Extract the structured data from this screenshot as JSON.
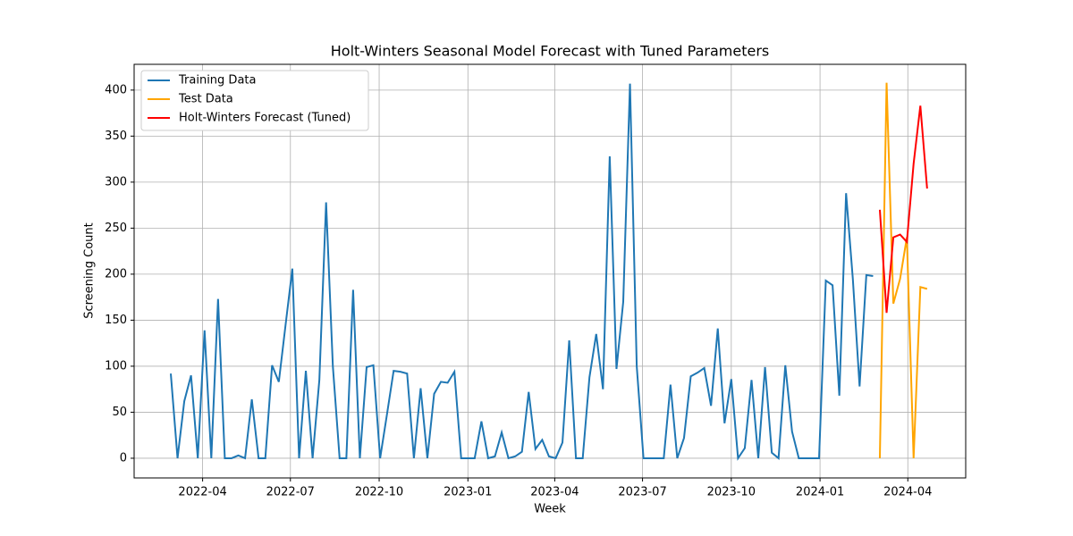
{
  "chart_data": {
    "type": "line",
    "title": "Holt-Winters Seasonal Model Forecast with Tuned Parameters",
    "xlabel": "Week",
    "ylabel": "Screening Count",
    "series": [
      {
        "name": "Training Data",
        "color": "#1f77b4",
        "x": [
          "2022-02-27",
          "2022-03-06",
          "2022-03-13",
          "2022-03-20",
          "2022-03-27",
          "2022-04-03",
          "2022-04-10",
          "2022-04-17",
          "2022-04-24",
          "2022-05-01",
          "2022-05-08",
          "2022-05-15",
          "2022-05-22",
          "2022-05-29",
          "2022-06-05",
          "2022-06-12",
          "2022-06-19",
          "2022-06-26",
          "2022-07-03",
          "2022-07-10",
          "2022-07-17",
          "2022-07-24",
          "2022-07-31",
          "2022-08-07",
          "2022-08-14",
          "2022-08-21",
          "2022-08-28",
          "2022-09-04",
          "2022-09-11",
          "2022-09-18",
          "2022-09-25",
          "2022-10-02",
          "2022-10-09",
          "2022-10-16",
          "2022-10-23",
          "2022-10-30",
          "2022-11-06",
          "2022-11-13",
          "2022-11-20",
          "2022-11-27",
          "2022-12-04",
          "2022-12-11",
          "2022-12-18",
          "2022-12-25",
          "2023-01-01",
          "2023-01-08",
          "2023-01-15",
          "2023-01-22",
          "2023-01-29",
          "2023-02-05",
          "2023-02-12",
          "2023-02-19",
          "2023-02-26",
          "2023-03-05",
          "2023-03-12",
          "2023-03-19",
          "2023-03-26",
          "2023-04-02",
          "2023-04-09",
          "2023-04-16",
          "2023-04-23",
          "2023-04-30",
          "2023-05-07",
          "2023-05-14",
          "2023-05-21",
          "2023-05-28",
          "2023-06-04",
          "2023-06-11",
          "2023-06-18",
          "2023-06-25",
          "2023-07-02",
          "2023-07-09",
          "2023-07-16",
          "2023-07-23",
          "2023-07-30",
          "2023-08-06",
          "2023-08-13",
          "2023-08-20",
          "2023-08-27",
          "2023-09-03",
          "2023-09-10",
          "2023-09-17",
          "2023-09-24",
          "2023-10-01",
          "2023-10-08",
          "2023-10-15",
          "2023-10-22",
          "2023-10-29",
          "2023-11-05",
          "2023-11-12",
          "2023-11-19",
          "2023-11-26",
          "2023-12-03",
          "2023-12-10",
          "2023-12-17",
          "2023-12-24",
          "2023-12-31",
          "2024-01-07",
          "2024-01-14",
          "2024-01-21",
          "2024-01-28",
          "2024-02-04",
          "2024-02-11",
          "2024-02-18",
          "2024-02-25"
        ],
        "values": [
          92,
          0,
          62,
          90,
          0,
          139,
          0,
          173,
          0,
          0,
          3,
          0,
          64,
          0,
          0,
          101,
          83,
          145,
          206,
          0,
          95,
          0,
          85,
          278,
          100,
          0,
          0,
          183,
          0,
          99,
          101,
          0,
          47,
          95,
          94,
          92,
          0,
          76,
          0,
          70,
          83,
          82,
          94,
          0,
          0,
          0,
          40,
          0,
          2,
          28,
          0,
          2,
          7,
          72,
          10,
          20,
          2,
          0,
          17,
          128,
          0,
          0,
          88,
          135,
          75,
          328,
          97,
          170,
          407,
          100,
          0,
          0,
          0,
          0,
          80,
          0,
          22,
          89,
          93,
          98,
          57,
          141,
          38,
          86,
          0,
          11,
          85,
          0,
          99,
          6,
          0,
          101,
          29,
          0,
          0,
          0,
          0,
          193,
          188,
          68,
          288,
          195,
          78,
          199,
          198
        ]
      },
      {
        "name": "Test Data",
        "color": "#ffa500",
        "x": [
          "2024-03-03",
          "2024-03-10",
          "2024-03-17",
          "2024-03-24",
          "2024-03-31",
          "2024-04-07",
          "2024-04-14",
          "2024-04-21"
        ],
        "values": [
          0,
          408,
          168,
          195,
          240,
          0,
          186,
          184
        ]
      },
      {
        "name": "Holt-Winters Forecast (Tuned)",
        "color": "#ff0000",
        "x": [
          "2024-03-03",
          "2024-03-10",
          "2024-03-17",
          "2024-03-24",
          "2024-03-31",
          "2024-04-07",
          "2024-04-14",
          "2024-04-21"
        ],
        "values": [
          270,
          158,
          240,
          243,
          235,
          320,
          383,
          293
        ]
      }
    ],
    "xlim": [
      "2022-01-20",
      "2024-05-31"
    ],
    "xticks": [
      {
        "value": "2022-04-01",
        "label": "2022-04"
      },
      {
        "value": "2022-07-01",
        "label": "2022-07"
      },
      {
        "value": "2022-10-01",
        "label": "2022-10"
      },
      {
        "value": "2023-01-01",
        "label": "2023-01"
      },
      {
        "value": "2023-04-01",
        "label": "2023-04"
      },
      {
        "value": "2023-07-01",
        "label": "2023-07"
      },
      {
        "value": "2023-10-01",
        "label": "2023-10"
      },
      {
        "value": "2024-01-01",
        "label": "2024-01"
      },
      {
        "value": "2024-04-01",
        "label": "2024-04"
      }
    ],
    "ylim": [
      -21.4,
      428
    ],
    "yticks": [
      0,
      50,
      100,
      150,
      200,
      250,
      300,
      350,
      400
    ],
    "grid": true,
    "legend": "upper-left"
  }
}
